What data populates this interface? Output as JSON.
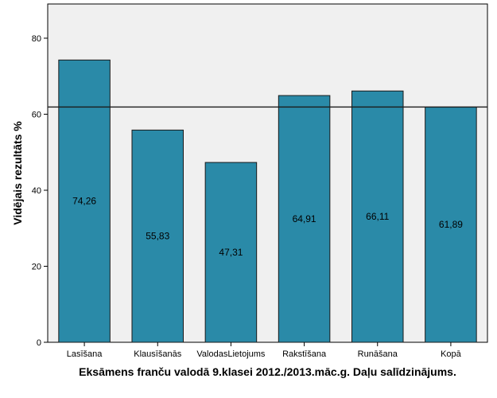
{
  "chart_data": {
    "type": "bar",
    "categories": [
      "Lasīšana",
      "Klausīšanās",
      "ValodasLietojums",
      "Rakstīšana",
      "Runāšana",
      "Kopā"
    ],
    "values": [
      74.26,
      55.83,
      47.31,
      64.91,
      66.11,
      61.89
    ],
    "value_labels": [
      "74,26",
      "55,83",
      "47,31",
      "64,91",
      "66,11",
      "61,89"
    ],
    "xlabel": "Eksāmens franču valodā 9.klasei 2012./2013.māc.g. Daļu salīdzinājums.",
    "ylabel": "Vidējais rezultāts %",
    "ylim": [
      0,
      89
    ],
    "yticks": [
      0,
      20,
      40,
      60,
      80
    ],
    "reference_line": 61.89,
    "grid": false,
    "colors": {
      "bar_fill": "#2a8aa8",
      "bar_stroke": "#1a1a1a",
      "plot_background": "#f0f0f0",
      "axis": "#000000"
    }
  }
}
